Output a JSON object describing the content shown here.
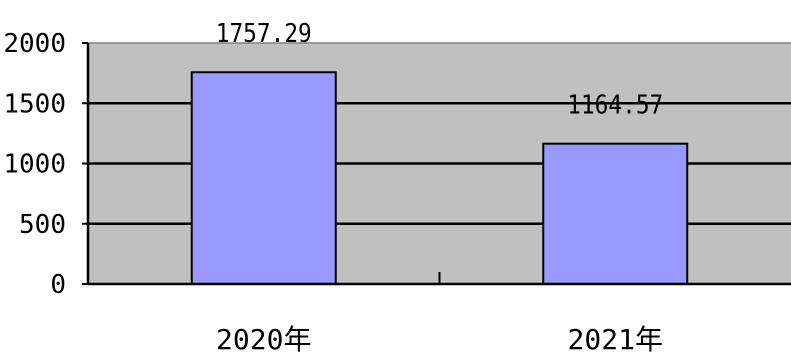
{
  "chart_data": {
    "type": "bar",
    "categories": [
      "2020年",
      "2021年"
    ],
    "values": [
      1757.29,
      1164.57
    ],
    "data_labels": [
      "1757.29",
      "1164.57"
    ],
    "title": "",
    "xlabel": "",
    "ylabel": "",
    "ylim": [
      0,
      2000
    ],
    "yticks": [
      0,
      500,
      1000,
      1500,
      2000
    ],
    "ytick_labels": [
      "0",
      "500",
      "1000",
      "1500",
      "2000"
    ],
    "grid": true,
    "legend": "none",
    "colors": {
      "plot_background": "#c0c0c0",
      "bar_fill": "#9999ff",
      "bar_stroke": "#000000",
      "gridline": "#000000",
      "axis": "#000000"
    }
  }
}
